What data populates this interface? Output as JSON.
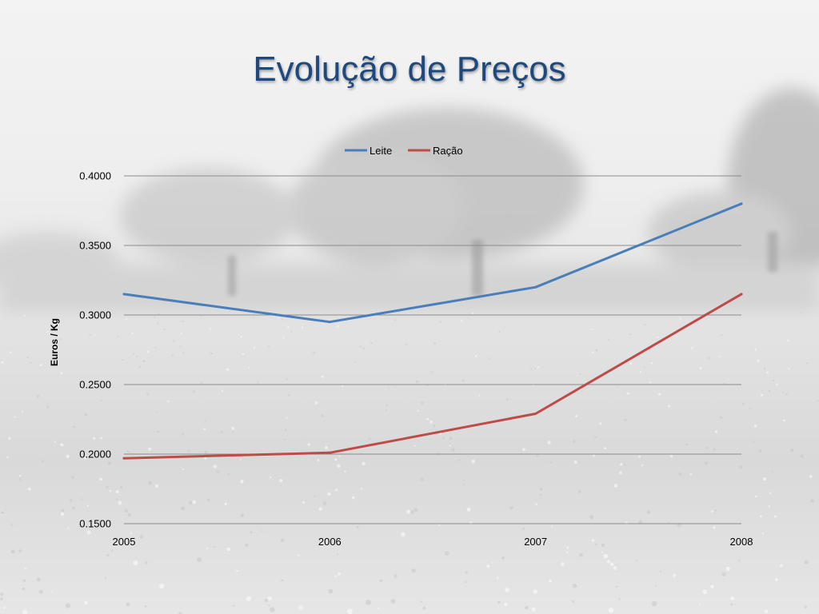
{
  "slide": {
    "title": "Evolução de Preços"
  },
  "chart_data": {
    "type": "line",
    "title": "",
    "xlabel": "",
    "ylabel": "Euros /  Kg",
    "x": [
      "2005",
      "2006",
      "2007",
      "2008"
    ],
    "yticks": [
      "0.1500",
      "0.2000",
      "0.2500",
      "0.3000",
      "0.3500",
      "0.4000"
    ],
    "ylim": [
      0.15,
      0.4
    ],
    "grid": true,
    "legend_position": "top-center",
    "series": [
      {
        "name": "Leite",
        "color": "#4a7ebb",
        "values": [
          0.315,
          0.295,
          0.32,
          0.38
        ]
      },
      {
        "name": "Ração",
        "color": "#be4b48",
        "values": [
          0.197,
          0.201,
          0.229,
          0.315
        ]
      }
    ]
  }
}
